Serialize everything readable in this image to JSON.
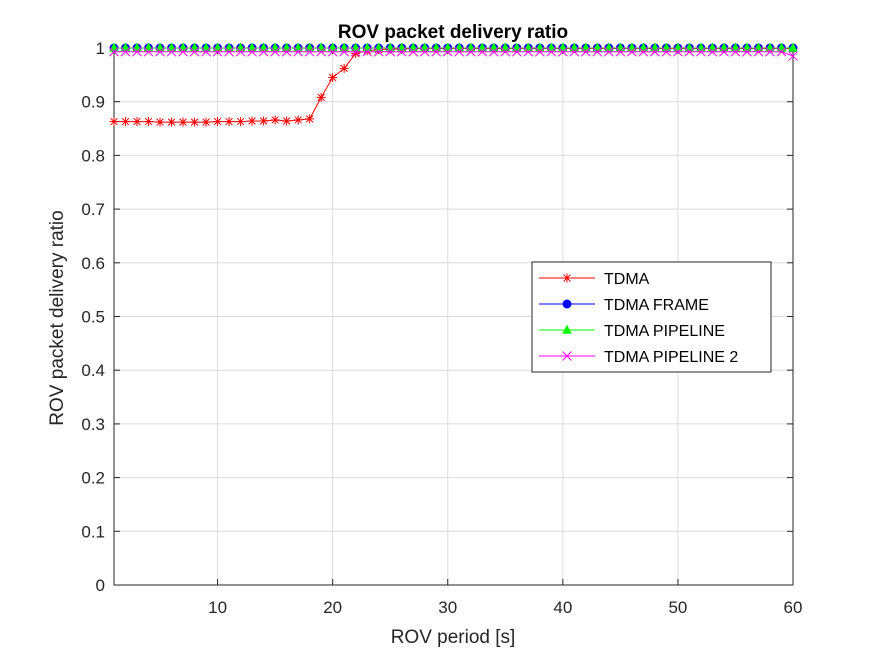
{
  "chart_data": {
    "type": "line",
    "title": "ROV packet delivery ratio",
    "xlabel": "ROV period [s]",
    "ylabel": "ROV packet delivery ratio",
    "xlim": [
      1,
      60
    ],
    "ylim": [
      0,
      1
    ],
    "xticks": [
      10,
      20,
      30,
      40,
      50,
      60
    ],
    "yticks": [
      0,
      0.1,
      0.2,
      0.3,
      0.4,
      0.5,
      0.6,
      0.7,
      0.8,
      0.9,
      1
    ],
    "grid": true,
    "legend_position": "right-middle",
    "x": [
      1,
      2,
      3,
      4,
      5,
      6,
      7,
      8,
      9,
      10,
      11,
      12,
      13,
      14,
      15,
      16,
      17,
      18,
      19,
      20,
      21,
      22,
      23,
      24,
      25,
      26,
      27,
      28,
      29,
      30,
      31,
      32,
      33,
      34,
      35,
      36,
      37,
      38,
      39,
      40,
      41,
      42,
      43,
      44,
      45,
      46,
      47,
      48,
      49,
      50,
      51,
      52,
      53,
      54,
      55,
      56,
      57,
      58,
      59,
      60
    ],
    "series": [
      {
        "name": "TDMA",
        "color": "#ff0000",
        "marker": "asterisk",
        "values": [
          0.863,
          0.863,
          0.863,
          0.863,
          0.862,
          0.862,
          0.862,
          0.862,
          0.862,
          0.863,
          0.863,
          0.863,
          0.864,
          0.864,
          0.866,
          0.864,
          0.866,
          0.868,
          0.908,
          0.945,
          0.962,
          0.99,
          0.995,
          0.997,
          0.998,
          0.998,
          0.999,
          0.999,
          0.999,
          0.999,
          0.999,
          0.999,
          0.999,
          0.999,
          0.999,
          0.999,
          0.999,
          0.999,
          0.999,
          0.999,
          0.999,
          0.999,
          0.999,
          0.999,
          0.999,
          0.999,
          0.999,
          0.999,
          0.999,
          0.999,
          0.999,
          0.999,
          0.999,
          0.999,
          0.999,
          0.999,
          0.999,
          0.999,
          0.999,
          0.999
        ]
      },
      {
        "name": "TDMA FRAME",
        "color": "#0000ff",
        "marker": "circle",
        "values": [
          1,
          1,
          1,
          1,
          1,
          1,
          1,
          1,
          1,
          1,
          1,
          1,
          1,
          1,
          1,
          1,
          1,
          1,
          1,
          1,
          1,
          1,
          1,
          1,
          1,
          1,
          1,
          1,
          1,
          1,
          1,
          1,
          1,
          1,
          1,
          1,
          1,
          1,
          1,
          1,
          1,
          1,
          1,
          1,
          1,
          1,
          1,
          1,
          1,
          1,
          1,
          1,
          1,
          1,
          1,
          1,
          1,
          1,
          1,
          1
        ]
      },
      {
        "name": "TDMA PIPELINE",
        "color": "#00ff00",
        "marker": "triangle",
        "values": [
          1,
          1,
          1,
          1,
          1,
          1,
          1,
          1,
          1,
          1,
          1,
          1,
          1,
          1,
          1,
          1,
          1,
          1,
          1,
          1,
          1,
          1,
          1,
          1,
          1,
          1,
          1,
          1,
          1,
          1,
          1,
          1,
          1,
          1,
          1,
          1,
          1,
          1,
          1,
          1,
          1,
          1,
          1,
          1,
          1,
          1,
          1,
          1,
          1,
          1,
          1,
          1,
          1,
          1,
          1,
          1,
          1,
          1,
          1,
          1
        ]
      },
      {
        "name": "TDMA PIPELINE 2",
        "color": "#ff00ff",
        "marker": "x",
        "values": [
          0.993,
          0.993,
          0.993,
          0.993,
          0.993,
          0.993,
          0.993,
          0.993,
          0.993,
          0.993,
          0.993,
          0.993,
          0.993,
          0.993,
          0.993,
          0.993,
          0.993,
          0.993,
          0.993,
          0.993,
          0.993,
          0.993,
          0.993,
          0.993,
          0.993,
          0.993,
          0.993,
          0.993,
          0.993,
          0.993,
          0.993,
          0.993,
          0.993,
          0.993,
          0.993,
          0.993,
          0.993,
          0.993,
          0.993,
          0.993,
          0.993,
          0.993,
          0.993,
          0.993,
          0.993,
          0.993,
          0.993,
          0.993,
          0.993,
          0.993,
          0.993,
          0.993,
          0.993,
          0.993,
          0.993,
          0.993,
          0.993,
          0.993,
          0.993,
          0.985
        ]
      }
    ]
  }
}
